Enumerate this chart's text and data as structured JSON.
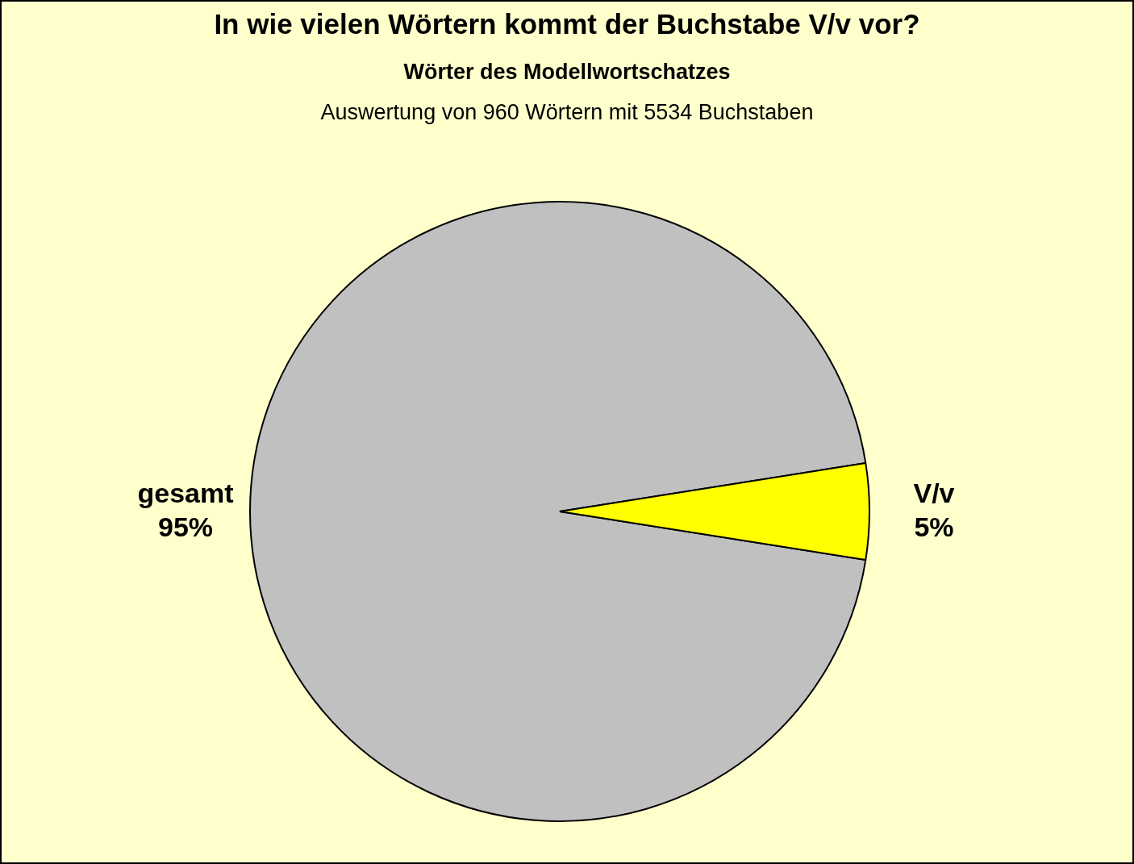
{
  "chart_data": {
    "type": "pie",
    "title": "In wie vielen Wörtern kommt der Buchstabe V/v vor?",
    "subtitle": "Wörter des Modellwortschatzes",
    "annotations": [
      "Auswertung von 960 Wörtern mit 5534 Buchstaben"
    ],
    "categories": [
      "gesamt",
      "V/v"
    ],
    "values": [
      95,
      5
    ],
    "colors": [
      "#c0c0c0",
      "#ffff00"
    ],
    "value_labels": [
      "95%",
      "5%"
    ],
    "legend": false
  }
}
